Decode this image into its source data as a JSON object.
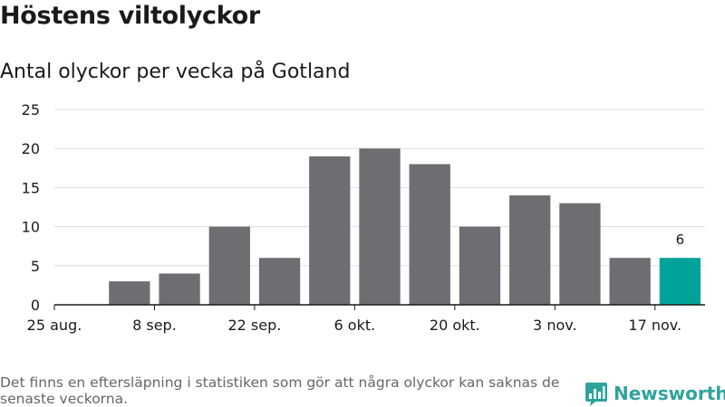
{
  "header": {
    "title": "Höstens viltolyckor",
    "subtitle": "Antal olyckor per vecka på Gotland"
  },
  "chart_data": {
    "type": "bar",
    "title": "Höstens viltolyckor",
    "subtitle": "Antal olyckor per vecka på Gotland",
    "xlabel": "",
    "ylabel": "",
    "ylim": [
      0,
      25
    ],
    "yticks": [
      0,
      5,
      10,
      15,
      20,
      25
    ],
    "grid": true,
    "x_tick_labels": [
      "25 aug.",
      "8 sep.",
      "22 sep.",
      "6 okt.",
      "20 okt.",
      "3 nov.",
      "17 nov."
    ],
    "series": [
      {
        "name": "Antal olyckor",
        "values": [
          0,
          3,
          4,
          10,
          6,
          19,
          20,
          18,
          10,
          14,
          13,
          6,
          6
        ]
      }
    ],
    "highlight": {
      "index": 12,
      "value_label": "6"
    },
    "colors": {
      "bar": "#6d6d72",
      "highlight": "#00a39a",
      "grid": "#dddddd",
      "axis": "#1a1a1a"
    }
  },
  "footer": {
    "note": "Det finns en eftersläpning i statistiken som gör att några olyckor kan saknas de senaste veckorna.",
    "brand": "Newsworthy",
    "brand_color": "#2ea39c",
    "brand_icon": "bar-chart-logo-icon"
  }
}
